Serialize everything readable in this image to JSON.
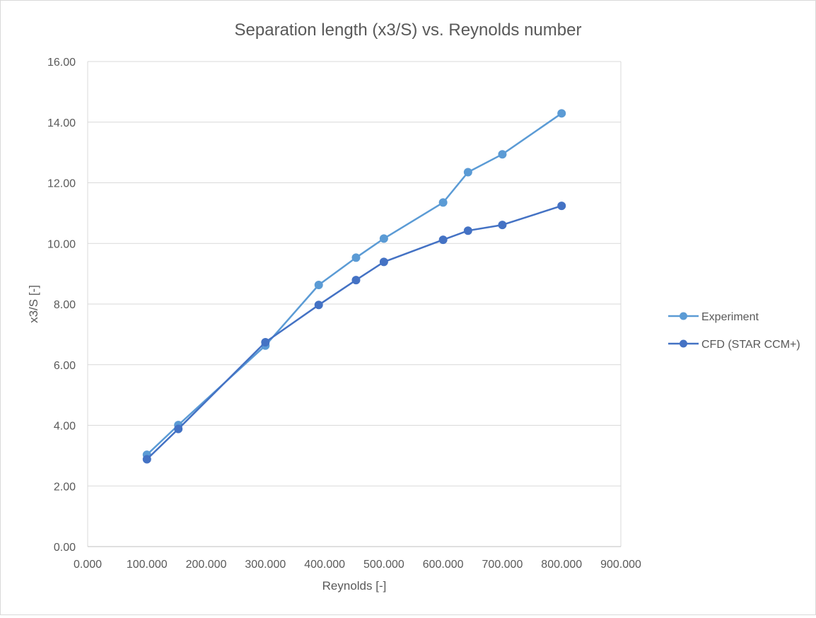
{
  "chart_data": {
    "type": "line",
    "title": "Separation length (x3/S) vs. Reynolds number",
    "xlabel": "Reynolds [-]",
    "ylabel": "x3/S [-]",
    "xlim": [
      0,
      900000
    ],
    "ylim": [
      0,
      16
    ],
    "x_ticks": [
      0,
      100000,
      200000,
      300000,
      400000,
      500000,
      600000,
      700000,
      800000,
      900000
    ],
    "x_tick_labels": [
      "0.000",
      "100.000",
      "200.000",
      "300.000",
      "400.000",
      "500.000",
      "600.000",
      "700.000",
      "800.000",
      "900.000"
    ],
    "y_ticks": [
      0,
      2,
      4,
      6,
      8,
      10,
      12,
      14,
      16
    ],
    "y_tick_labels": [
      "0.00",
      "2.00",
      "4.00",
      "6.00",
      "8.00",
      "10.00",
      "12.00",
      "14.00",
      "16.00"
    ],
    "grid": "horizontal",
    "legend_position": "right",
    "series": [
      {
        "name": "Experiment",
        "color": "#5b9bd5",
        "x": [
          100000,
          153000,
          300000,
          390000,
          453000,
          500000,
          600000,
          642000,
          700000,
          800000
        ],
        "y": [
          3.03,
          4.01,
          6.63,
          8.63,
          9.53,
          10.16,
          11.35,
          12.35,
          12.94,
          14.29
        ]
      },
      {
        "name": "CFD (STAR CCM+)",
        "color": "#4472c4",
        "x": [
          100000,
          153000,
          300000,
          390000,
          453000,
          500000,
          600000,
          642000,
          700000,
          800000
        ],
        "y": [
          2.88,
          3.88,
          6.74,
          7.97,
          8.79,
          9.39,
          10.12,
          10.42,
          10.61,
          11.24
        ]
      }
    ]
  }
}
